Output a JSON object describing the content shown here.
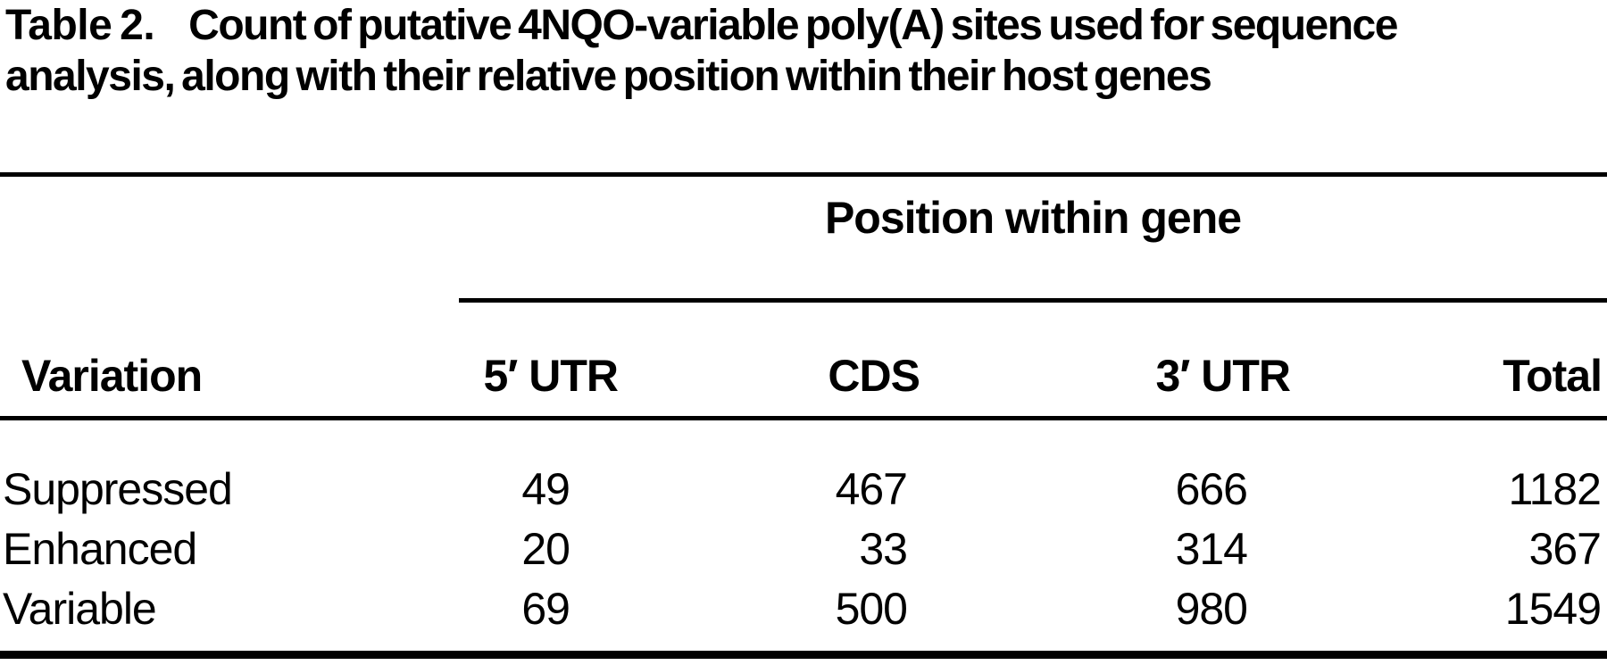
{
  "title": {
    "label": "Table 2.",
    "caption": "Count of putative 4NQO-variable poly(A) sites used for sequence analysis, along with their relative position within their host genes"
  },
  "table": {
    "span_header": "Position within gene",
    "columns": {
      "variation": "Variation",
      "utr5": "5′ UTR",
      "cds": "CDS",
      "utr3": "3′ UTR",
      "total": "Total"
    },
    "rows": [
      {
        "label": "Suppressed",
        "utr5": "49",
        "cds": "467",
        "utr3": "666",
        "total": "1182"
      },
      {
        "label": "Enhanced",
        "utr5": "20",
        "cds": "33",
        "utr3": "314",
        "total": "367"
      },
      {
        "label": "Variable",
        "utr5": "69",
        "cds": "500",
        "utr3": "980",
        "total": "1549"
      }
    ]
  },
  "colors": {
    "text": "#000000",
    "background": "#ffffff",
    "rule": "#000000"
  }
}
